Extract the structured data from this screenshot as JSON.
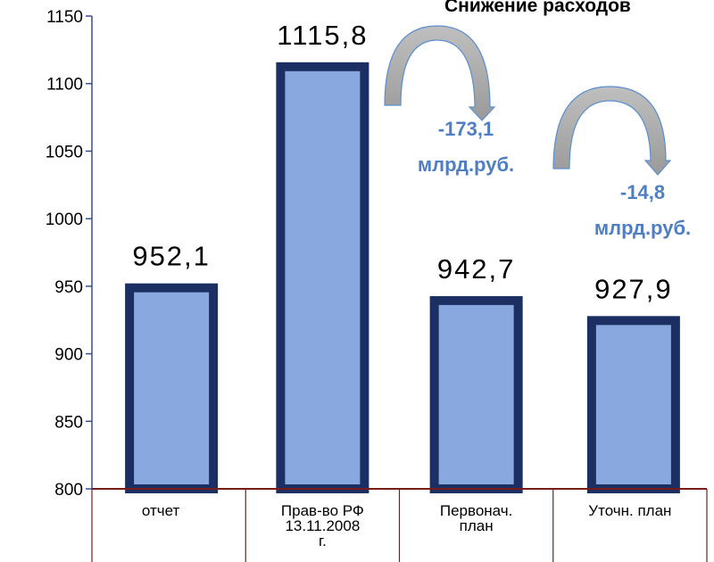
{
  "chart_data": {
    "type": "bar",
    "title": "Снижение расходов",
    "categories": [
      [
        "отчет"
      ],
      [
        "Прав-во РФ",
        "13.11.2008",
        "г."
      ],
      [
        "Первонач.",
        "план"
      ],
      [
        "Уточн. план"
      ]
    ],
    "values": [
      952.1,
      1115.8,
      942.7,
      927.9
    ],
    "value_labels": [
      "952,1",
      "1115,8",
      "942,7",
      "927,9"
    ],
    "ylim": [
      800,
      1150
    ],
    "yticks": [
      800,
      850,
      900,
      950,
      1000,
      1050,
      1100,
      1150
    ],
    "xlabel": "",
    "ylabel": "",
    "grid": false,
    "annotations": [
      {
        "from": 1,
        "to": 2,
        "lines": [
          "-173,1",
          "млрд.руб."
        ]
      },
      {
        "from": 2,
        "to": 3,
        "lines": [
          "-14,8",
          "млрд.руб."
        ]
      }
    ]
  },
  "colors": {
    "bar_fill": "#8aa8e0",
    "bar_border": "#1c2f63",
    "annotation_text": "#4f7fc2",
    "arrow_fill_top": "#bfbfbf",
    "arrow_fill_bottom": "#9a9a9a",
    "arrow_stroke": "#5b8fd1",
    "axis_line": "#7a1b1b",
    "y_axis_line": "#3a4f8a"
  }
}
